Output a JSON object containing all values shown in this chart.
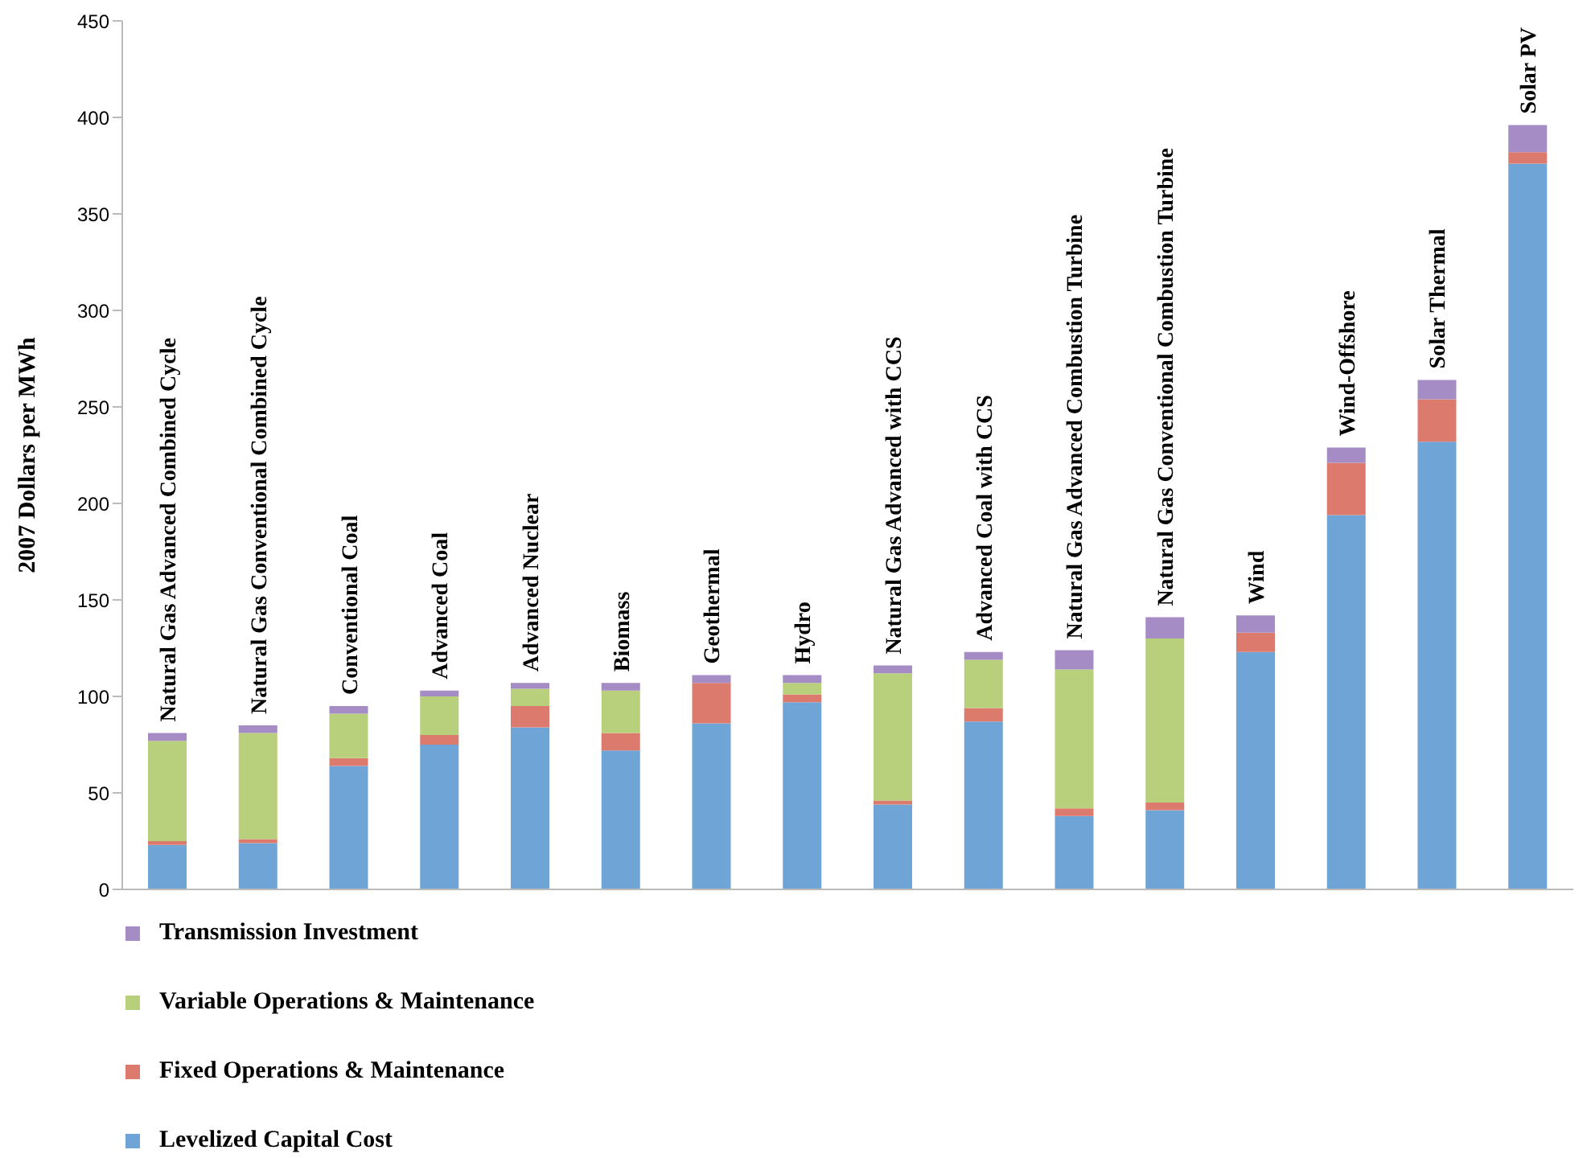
{
  "chart_data": {
    "type": "bar",
    "stacked": true,
    "ylabel": "2007 Dollars per MWh",
    "categories": [
      "Natural Gas Advanced Combined Cycle",
      "Natural Gas Conventional Combined Cycle",
      "Conventional Coal",
      "Advanced Coal",
      "Advanced Nuclear",
      "Biomass",
      "Geothermal",
      "Hydro",
      "Natural Gas Advanced with CCS",
      "Advanced Coal with CCS",
      "Natural Gas Advanced Combustion Turbine",
      "Natural Gas Conventional Combustion Turbine",
      "Wind",
      "Wind-Offshore",
      "Solar Thermal",
      "Solar PV"
    ],
    "series": [
      {
        "name": "Levelized Capital Cost",
        "color": "#6fa5d6",
        "values": [
          23,
          24,
          64,
          75,
          84,
          72,
          86,
          97,
          44,
          87,
          38,
          41,
          123,
          194,
          232,
          376
        ]
      },
      {
        "name": "Fixed Operations & Maintenance",
        "color": "#dc7a6e",
        "values": [
          2,
          2,
          4,
          5,
          11,
          9,
          21,
          4,
          2,
          7,
          4,
          4,
          10,
          27,
          22,
          6
        ]
      },
      {
        "name": "Variable Operations & Maintenance",
        "color": "#b8cf7c",
        "values": [
          52,
          55,
          23,
          20,
          9,
          22,
          0,
          6,
          66,
          25,
          72,
          85,
          0,
          0,
          0,
          0
        ]
      },
      {
        "name": "Transmission Investment",
        "color": "#a68cc4",
        "values": [
          4,
          4,
          4,
          3,
          3,
          4,
          4,
          4,
          4,
          4,
          10,
          11,
          9,
          8,
          10,
          14
        ]
      }
    ],
    "ylim": [
      0,
      450
    ],
    "yticks": [
      0,
      50,
      100,
      150,
      200,
      250,
      300,
      350,
      400,
      450
    ],
    "legend": "bottom left"
  }
}
